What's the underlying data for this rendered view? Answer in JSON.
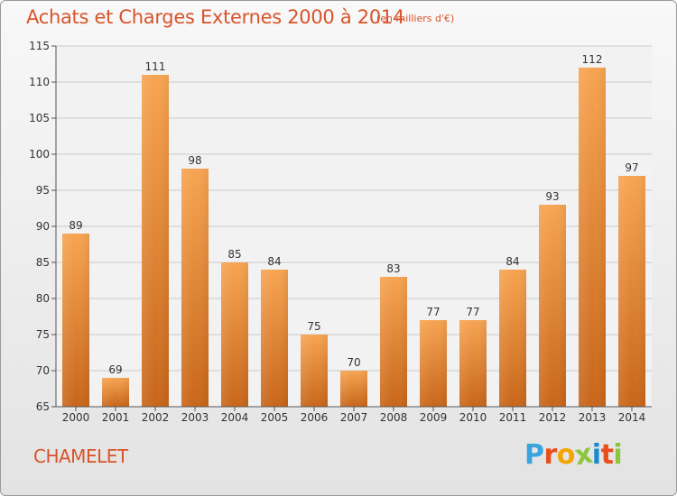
{
  "header": {
    "title": "Achats et Charges Externes 2000 à 2014",
    "subtitle": "(en milliers d'€)"
  },
  "footer": {
    "commune": "CHAMELET",
    "brand": "Proxiti",
    "brand_colors": [
      "#3aa5dc",
      "#e94e1b",
      "#f5a400",
      "#8cc63f",
      "#1a8bcf",
      "#e94e1b",
      "#8cc63f"
    ]
  },
  "colors": {
    "title": "#d8542a",
    "bar_top": "#f7a452",
    "bar_bottom": "#c8661a",
    "grid": "#c9c9c9",
    "plot_bg": "#f2f2f2"
  },
  "chart_data": {
    "type": "bar",
    "categories": [
      "2000",
      "2001",
      "2002",
      "2003",
      "2004",
      "2005",
      "2006",
      "2007",
      "2008",
      "2009",
      "2010",
      "2011",
      "2012",
      "2013",
      "2014"
    ],
    "values": [
      89,
      69,
      111,
      98,
      85,
      84,
      75,
      70,
      83,
      77,
      77,
      84,
      93,
      112,
      97
    ],
    "yticks": [
      "65",
      "70",
      "75",
      "80",
      "85",
      "90",
      "95",
      "100",
      "105",
      "110",
      "115"
    ],
    "ylim": [
      65,
      115
    ],
    "grid": true
  }
}
